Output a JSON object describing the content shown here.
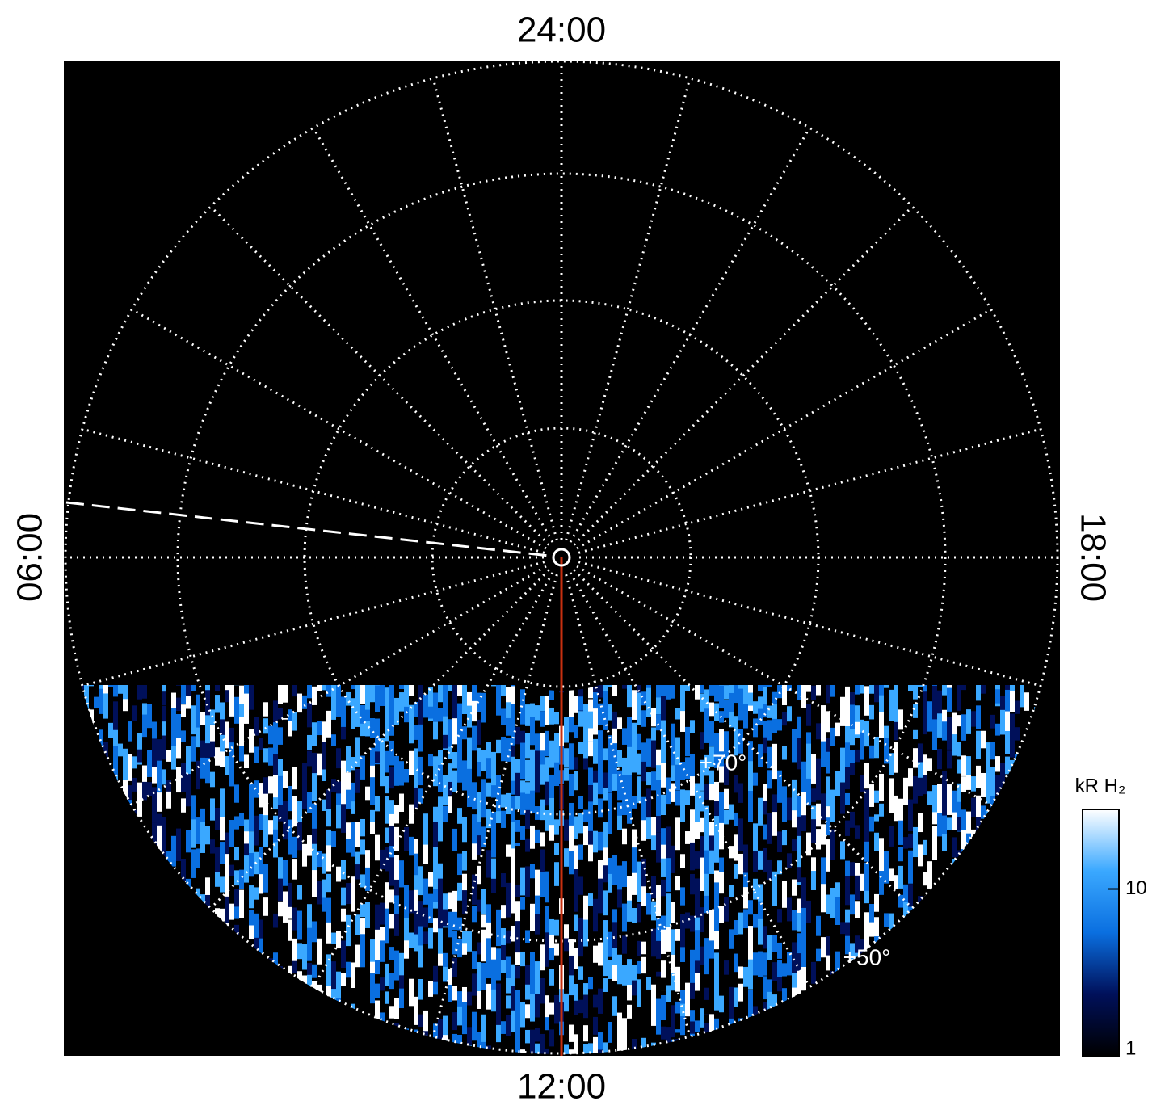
{
  "chart_data": {
    "type": "polar",
    "labels": {
      "top": "24:00",
      "bottom": "12:00",
      "left": "06:00",
      "right": "18:00"
    },
    "annotations": [
      "+70°",
      "+50°"
    ],
    "colorbar": {
      "label": "kR H₂",
      "clim": [
        1,
        30
      ],
      "ticks": [
        1,
        10
      ],
      "log_scale": true,
      "colors": [
        "#000000",
        "#00105a",
        "#0a6fe0",
        "#3aa8ff",
        "#ffffff"
      ]
    },
    "line_color": "#c83010"
  }
}
